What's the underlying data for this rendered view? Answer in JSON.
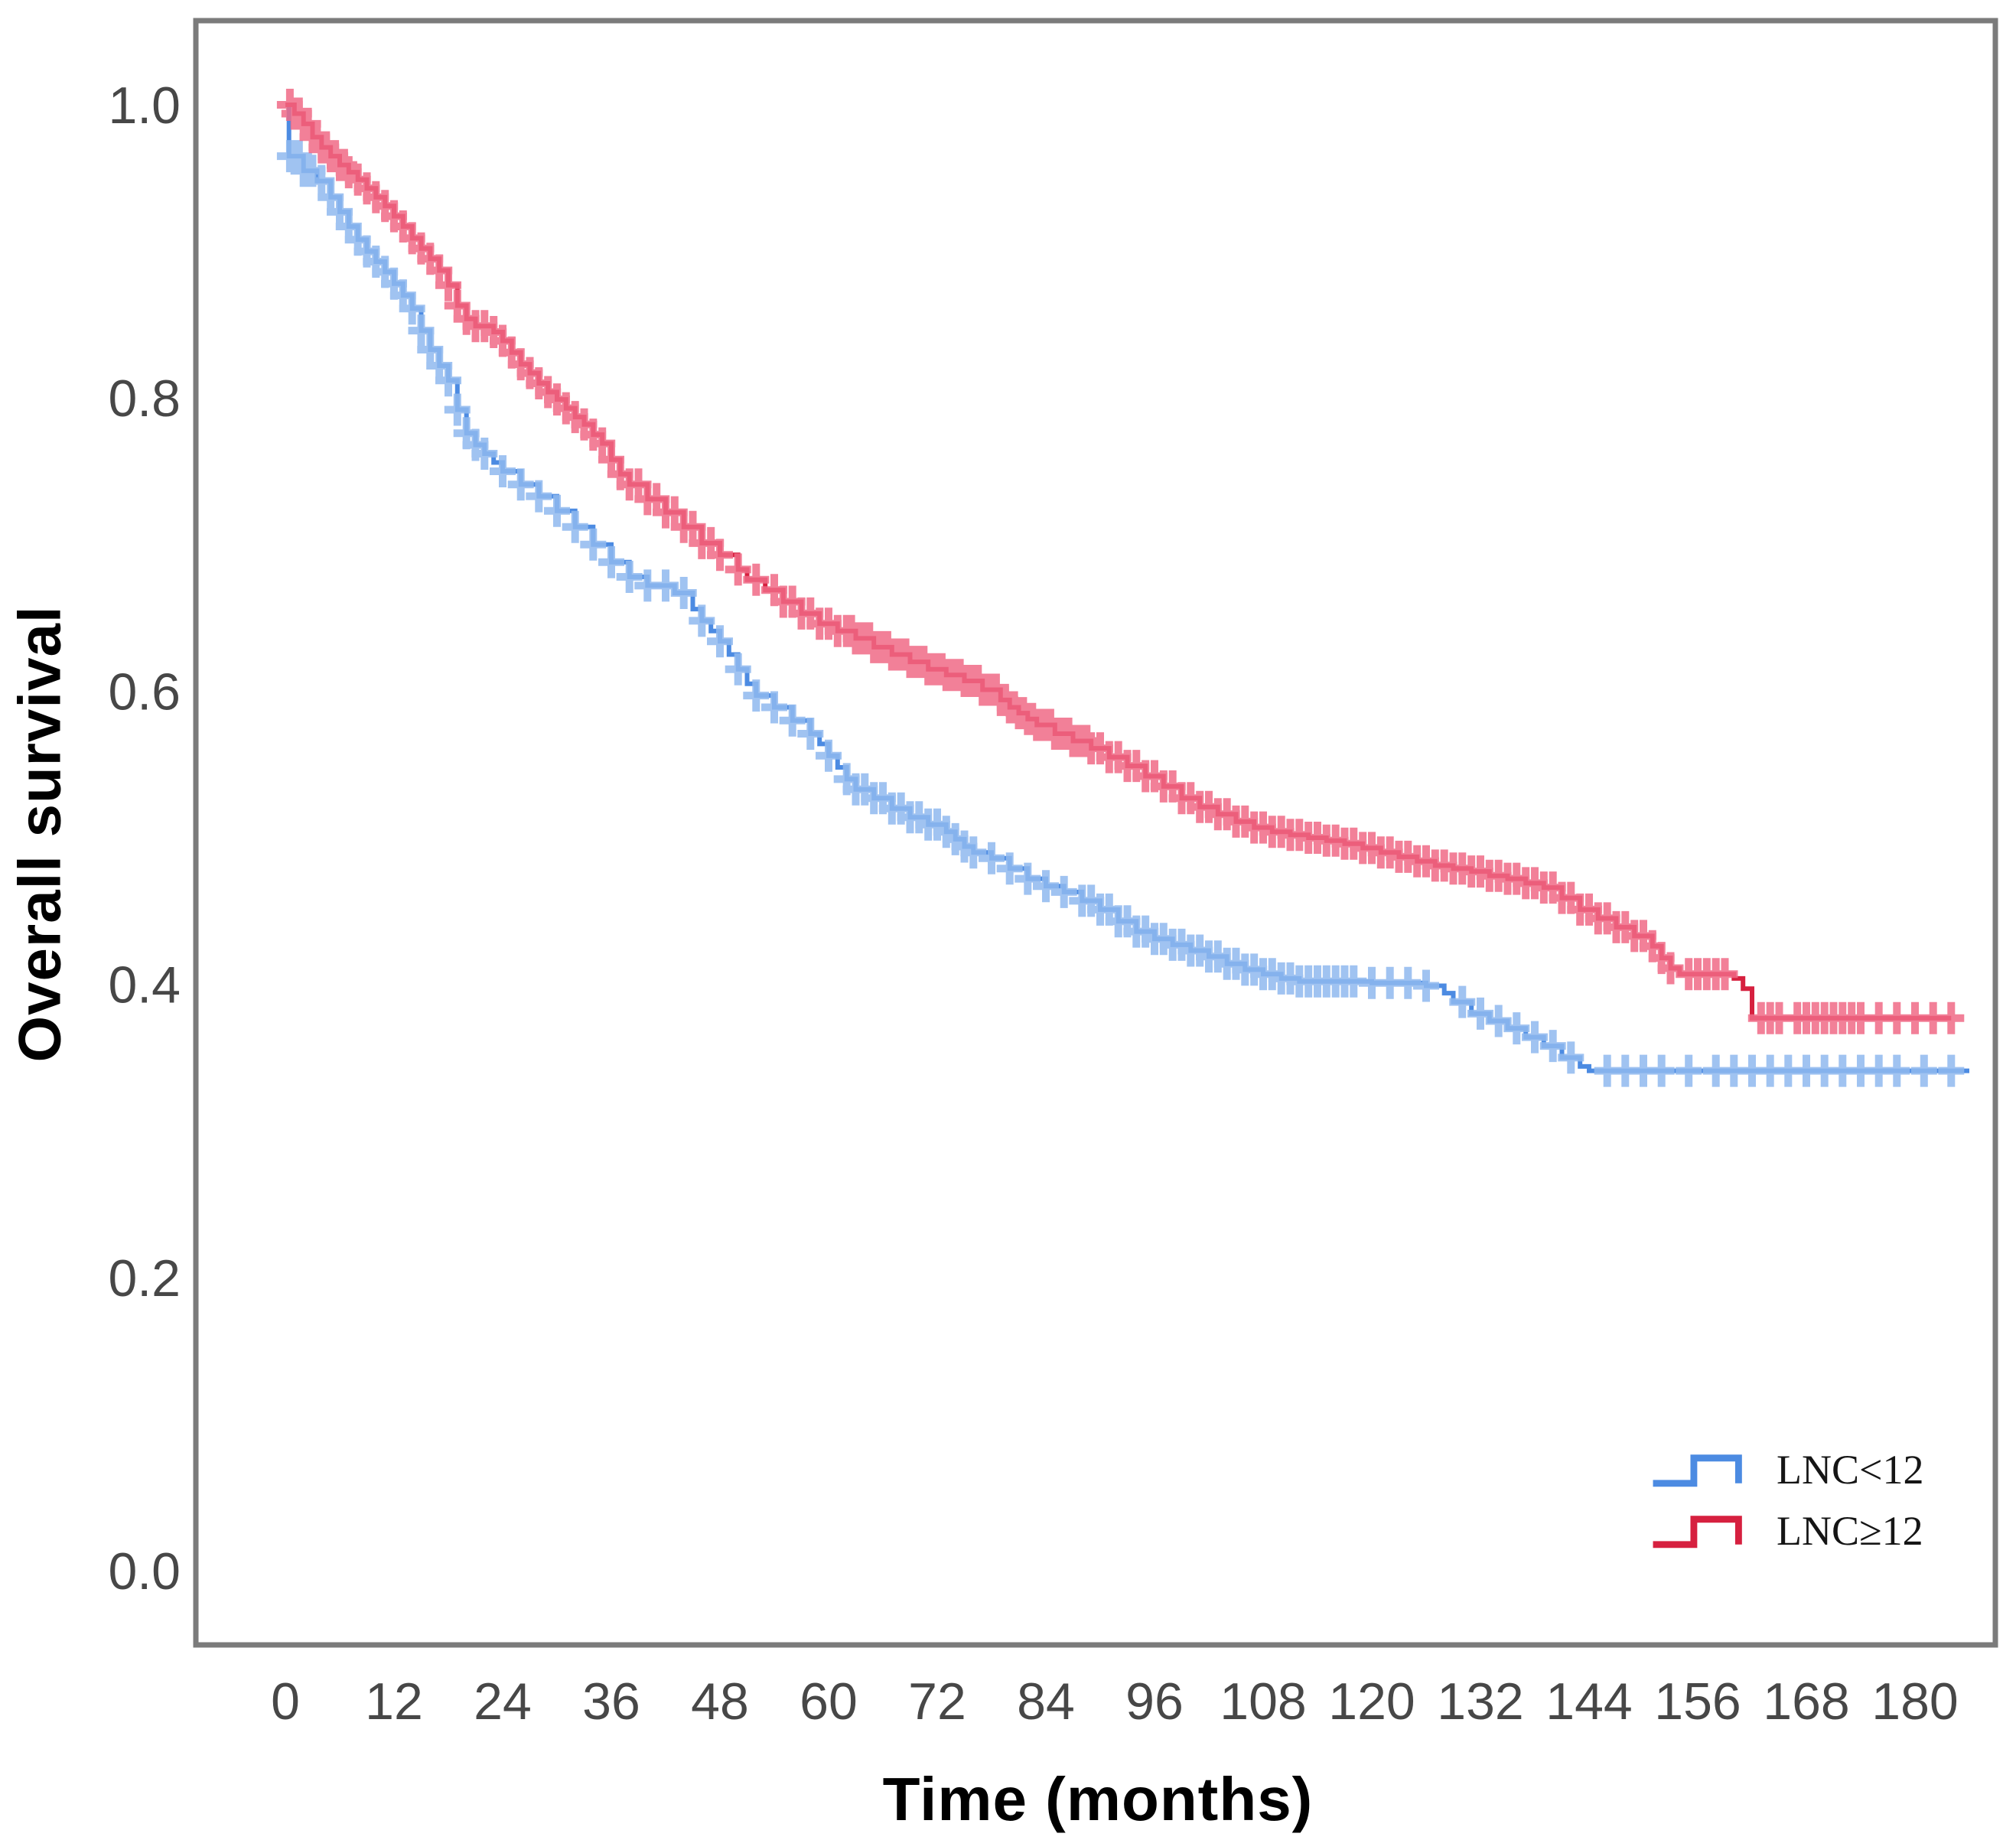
{
  "chart_data": {
    "type": "line",
    "subtype": "kaplan-meier-step",
    "title": "",
    "xlabel": "Time (months)",
    "ylabel": "Overall survival",
    "xlim": [
      0,
      189
    ],
    "ylim": [
      0.0,
      1.05
    ],
    "grid": false,
    "legend_position": "inside-bottom-right",
    "background": "#ffffff",
    "frame_color": "#7b7b7b",
    "tick_label_color": "#474747",
    "axis_title_color": "#000000",
    "x_ticks": [
      0,
      12,
      24,
      36,
      48,
      60,
      72,
      84,
      96,
      108,
      120,
      132,
      144,
      156,
      168,
      180
    ],
    "y_ticks": [
      0.0,
      0.2,
      0.4,
      0.6,
      0.8,
      1.0
    ],
    "y_tick_labels": [
      "0.0",
      "0.2",
      "0.4",
      "0.6",
      "0.8",
      "1.0"
    ],
    "series": [
      {
        "id": "lnc-lt-12",
        "name": "LNC<12",
        "color": "#4c8be2",
        "censor_color": "#8fb8ef",
        "points": [
          [
            0,
            1.0
          ],
          [
            0.4,
            0.965
          ],
          [
            2,
            0.955
          ],
          [
            3.5,
            0.948
          ],
          [
            5,
            0.937
          ],
          [
            6,
            0.927
          ],
          [
            7,
            0.917
          ],
          [
            8,
            0.908
          ],
          [
            9,
            0.9
          ],
          [
            10,
            0.893
          ],
          [
            11,
            0.886
          ],
          [
            12,
            0.878
          ],
          [
            13,
            0.87
          ],
          [
            14,
            0.861
          ],
          [
            15,
            0.846
          ],
          [
            16,
            0.833
          ],
          [
            17,
            0.822
          ],
          [
            18,
            0.812
          ],
          [
            19,
            0.792
          ],
          [
            20,
            0.776
          ],
          [
            21,
            0.768
          ],
          [
            22,
            0.762
          ],
          [
            23,
            0.756
          ],
          [
            24,
            0.75
          ],
          [
            26,
            0.741
          ],
          [
            28,
            0.733
          ],
          [
            30,
            0.723
          ],
          [
            32,
            0.712
          ],
          [
            34,
            0.7
          ],
          [
            36,
            0.688
          ],
          [
            38,
            0.678
          ],
          [
            40,
            0.672
          ],
          [
            43,
            0.667
          ],
          [
            45,
            0.656
          ],
          [
            46,
            0.648
          ],
          [
            47,
            0.641
          ],
          [
            48,
            0.634
          ],
          [
            49,
            0.625
          ],
          [
            50,
            0.615
          ],
          [
            51,
            0.605
          ],
          [
            52,
            0.597
          ],
          [
            54,
            0.589
          ],
          [
            56,
            0.58
          ],
          [
            58,
            0.571
          ],
          [
            59,
            0.564
          ],
          [
            60,
            0.556
          ],
          [
            61,
            0.548
          ],
          [
            62,
            0.54
          ],
          [
            63,
            0.533
          ],
          [
            65,
            0.527
          ],
          [
            67,
            0.52
          ],
          [
            69,
            0.514
          ],
          [
            71,
            0.509
          ],
          [
            73,
            0.504
          ],
          [
            74,
            0.499
          ],
          [
            75,
            0.494
          ],
          [
            76,
            0.49
          ],
          [
            78,
            0.486
          ],
          [
            80,
            0.479
          ],
          [
            82,
            0.472
          ],
          [
            84,
            0.467
          ],
          [
            86,
            0.463
          ],
          [
            88,
            0.457
          ],
          [
            90,
            0.451
          ],
          [
            92,
            0.443
          ],
          [
            94,
            0.436
          ],
          [
            96,
            0.431
          ],
          [
            98,
            0.427
          ],
          [
            100,
            0.423
          ],
          [
            102,
            0.419
          ],
          [
            104,
            0.414
          ],
          [
            106,
            0.41
          ],
          [
            108,
            0.407
          ],
          [
            110,
            0.404
          ],
          [
            112,
            0.402
          ],
          [
            120,
            0.401
          ],
          [
            126,
            0.399
          ],
          [
            128,
            0.394
          ],
          [
            129,
            0.388
          ],
          [
            131,
            0.38
          ],
          [
            133,
            0.375
          ],
          [
            135,
            0.37
          ],
          [
            137,
            0.364
          ],
          [
            139,
            0.358
          ],
          [
            141,
            0.35
          ],
          [
            143,
            0.344
          ],
          [
            144,
            0.341
          ],
          [
            186,
            0.341
          ]
        ],
        "censor_times": [
          0.5,
          1,
          1.5,
          2,
          2.5,
          3,
          4,
          5,
          6,
          7,
          8,
          9,
          10,
          11,
          12,
          13,
          14,
          15,
          16,
          17,
          18,
          19,
          20,
          21,
          22,
          24,
          26,
          28,
          30,
          32,
          34,
          36,
          38,
          40,
          42,
          44,
          46,
          48,
          50,
          52,
          54,
          56,
          58,
          60,
          62,
          63,
          64,
          65,
          66,
          67,
          68,
          69,
          70,
          71,
          72,
          73,
          74,
          75,
          76,
          78,
          80,
          82,
          84,
          86,
          88,
          89,
          90,
          91,
          92,
          93,
          94,
          95,
          96,
          97,
          98,
          99,
          100,
          101,
          102,
          103,
          104,
          105,
          106,
          107,
          108,
          109,
          110,
          111,
          112,
          113,
          114,
          115,
          116,
          117,
          118,
          120,
          122,
          124,
          126,
          130,
          132,
          134,
          136,
          138,
          140,
          142,
          146,
          148,
          150,
          152,
          155,
          158,
          160,
          162,
          164,
          166,
          168,
          170,
          172,
          174,
          176,
          178,
          181,
          184
        ]
      },
      {
        "id": "lnc-ge-12",
        "name": "LNC≥12",
        "color": "#d6203f",
        "censor_color": "#f06a86",
        "points": [
          [
            0,
            1.0
          ],
          [
            1,
            0.994
          ],
          [
            2,
            0.987
          ],
          [
            3,
            0.978
          ],
          [
            4,
            0.971
          ],
          [
            5,
            0.965
          ],
          [
            6,
            0.959
          ],
          [
            7,
            0.954
          ],
          [
            8,
            0.949
          ],
          [
            9,
            0.943
          ],
          [
            10,
            0.937
          ],
          [
            11,
            0.931
          ],
          [
            12,
            0.924
          ],
          [
            13,
            0.917
          ],
          [
            14,
            0.909
          ],
          [
            15,
            0.902
          ],
          [
            16,
            0.895
          ],
          [
            17,
            0.887
          ],
          [
            18,
            0.877
          ],
          [
            19,
            0.863
          ],
          [
            20,
            0.854
          ],
          [
            21,
            0.849
          ],
          [
            23,
            0.845
          ],
          [
            24,
            0.839
          ],
          [
            25,
            0.831
          ],
          [
            26,
            0.823
          ],
          [
            27,
            0.817
          ],
          [
            28,
            0.81
          ],
          [
            29,
            0.804
          ],
          [
            30,
            0.799
          ],
          [
            31,
            0.793
          ],
          [
            32,
            0.787
          ],
          [
            33,
            0.782
          ],
          [
            34,
            0.775
          ],
          [
            35,
            0.769
          ],
          [
            36,
            0.758
          ],
          [
            37,
            0.748
          ],
          [
            38,
            0.741
          ],
          [
            40,
            0.731
          ],
          [
            42,
            0.722
          ],
          [
            44,
            0.712
          ],
          [
            46,
            0.701
          ],
          [
            48,
            0.693
          ],
          [
            50,
            0.683
          ],
          [
            51,
            0.676
          ],
          [
            53,
            0.669
          ],
          [
            55,
            0.661
          ],
          [
            57,
            0.653
          ],
          [
            59,
            0.646
          ],
          [
            61,
            0.641
          ],
          [
            63,
            0.636
          ],
          [
            65,
            0.63
          ],
          [
            67,
            0.625
          ],
          [
            69,
            0.62
          ],
          [
            71,
            0.615
          ],
          [
            73,
            0.611
          ],
          [
            75,
            0.607
          ],
          [
            77,
            0.601
          ],
          [
            79,
            0.594
          ],
          [
            80,
            0.589
          ],
          [
            81,
            0.585
          ],
          [
            82,
            0.581
          ],
          [
            83,
            0.577
          ],
          [
            85,
            0.571
          ],
          [
            87,
            0.566
          ],
          [
            89,
            0.561
          ],
          [
            91,
            0.555
          ],
          [
            93,
            0.549
          ],
          [
            95,
            0.542
          ],
          [
            97,
            0.535
          ],
          [
            99,
            0.527
          ],
          [
            101,
            0.521
          ],
          [
            103,
            0.516
          ],
          [
            105,
            0.511
          ],
          [
            107,
            0.507
          ],
          [
            109,
            0.504
          ],
          [
            111,
            0.502
          ],
          [
            113,
            0.5
          ],
          [
            115,
            0.498
          ],
          [
            117,
            0.496
          ],
          [
            119,
            0.493
          ],
          [
            121,
            0.49
          ],
          [
            123,
            0.487
          ],
          [
            125,
            0.484
          ],
          [
            127,
            0.481
          ],
          [
            129,
            0.479
          ],
          [
            131,
            0.477
          ],
          [
            133,
            0.474
          ],
          [
            135,
            0.472
          ],
          [
            137,
            0.469
          ],
          [
            139,
            0.466
          ],
          [
            141,
            0.459
          ],
          [
            143,
            0.451
          ],
          [
            145,
            0.445
          ],
          [
            147,
            0.439
          ],
          [
            149,
            0.433
          ],
          [
            151,
            0.426
          ],
          [
            152,
            0.418
          ],
          [
            153,
            0.411
          ],
          [
            154,
            0.407
          ],
          [
            160,
            0.404
          ],
          [
            161,
            0.397
          ],
          [
            162,
            0.377
          ],
          [
            184,
            0.377
          ]
        ],
        "censor_times": [
          0.5,
          1,
          1.5,
          2,
          2.5,
          3,
          3.5,
          4,
          4.5,
          5,
          5.5,
          6,
          6.5,
          7,
          8,
          9,
          10,
          11,
          12,
          13,
          14,
          15,
          16,
          17,
          18,
          19,
          20,
          21,
          22,
          23,
          24,
          25,
          26,
          27,
          28,
          29,
          30,
          31,
          32,
          33,
          34,
          35,
          36,
          37,
          38,
          39,
          40,
          41,
          42,
          43,
          44,
          45,
          46,
          47,
          48,
          50,
          52,
          54,
          55,
          56,
          57,
          58,
          59,
          60,
          61,
          62,
          62.5,
          63,
          63.5,
          64,
          64.5,
          65,
          65.5,
          66,
          66.5,
          67,
          67.5,
          68,
          68.5,
          69,
          69.5,
          70,
          70.5,
          71,
          71.5,
          72,
          72.5,
          73,
          73.5,
          74,
          74.5,
          75,
          75.5,
          76,
          76.5,
          77,
          77.5,
          78,
          78.5,
          79,
          79.5,
          80,
          80.5,
          81,
          81.5,
          82,
          82.5,
          83,
          83.5,
          84,
          84.5,
          85,
          85.5,
          86,
          86.5,
          87,
          87.5,
          88,
          88.5,
          89,
          90,
          91,
          92,
          93,
          94,
          95,
          96,
          97,
          98,
          99,
          100,
          101,
          102,
          103,
          104,
          105,
          106,
          107,
          108,
          109,
          110,
          111,
          112,
          113,
          114,
          115,
          116,
          117,
          118,
          119,
          120,
          121,
          122,
          123,
          124,
          125,
          126,
          127,
          128,
          129,
          130,
          131,
          132,
          133,
          134,
          135,
          136,
          137,
          138,
          139,
          140,
          141,
          142,
          143,
          144,
          145,
          146,
          147,
          148,
          149,
          150,
          151,
          152,
          153,
          155,
          156,
          157,
          158,
          159,
          163,
          164,
          165,
          167,
          168,
          169,
          170,
          171,
          172,
          173,
          174,
          176,
          178,
          180,
          182,
          184
        ]
      }
    ]
  },
  "legend": {
    "items": [
      {
        "label": "LNC<12"
      },
      {
        "label": "LNC≥12"
      }
    ]
  }
}
